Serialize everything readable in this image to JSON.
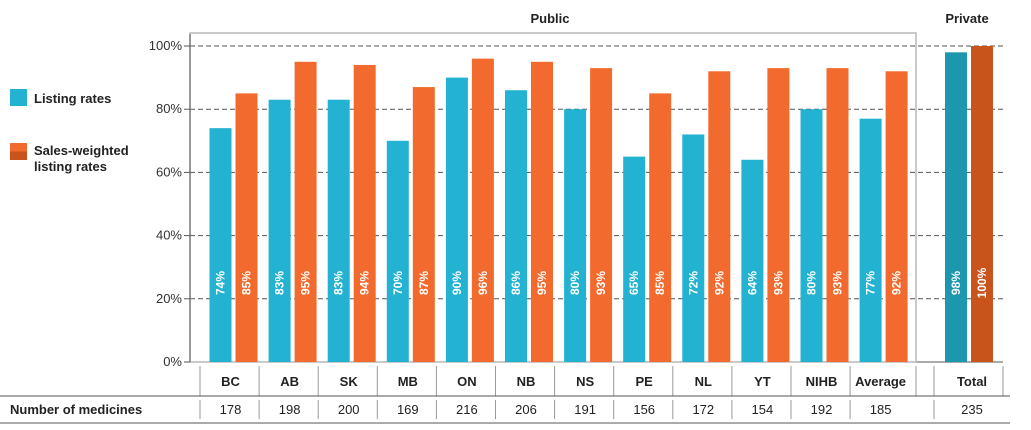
{
  "chart_data": {
    "type": "bar",
    "ylim": [
      0,
      100
    ],
    "yticks": [
      0,
      20,
      40,
      60,
      80,
      100
    ],
    "ytick_suffix": "%",
    "groups": [
      {
        "label": "Public",
        "categories": [
          "BC",
          "AB",
          "SK",
          "MB",
          "ON",
          "NB",
          "NS",
          "PE",
          "NL",
          "YT",
          "NIHB",
          "Average"
        ]
      },
      {
        "label": "Private",
        "categories": [
          "Total"
        ]
      }
    ],
    "categories": [
      "BC",
      "AB",
      "SK",
      "MB",
      "ON",
      "NB",
      "NS",
      "PE",
      "NL",
      "YT",
      "NIHB",
      "Average",
      "Total"
    ],
    "series": [
      {
        "name": "Listing rates",
        "values": [
          74,
          83,
          83,
          70,
          90,
          86,
          80,
          65,
          72,
          64,
          80,
          77,
          98
        ],
        "labels": [
          "74%",
          "83%",
          "83%",
          "70%",
          "90%",
          "86%",
          "80%",
          "65%",
          "72%",
          "64%",
          "80%",
          "77%",
          "98%"
        ]
      },
      {
        "name": "Sales-weighted listing rates",
        "name_lines": [
          "Sales-weighted",
          "listing rates"
        ],
        "values": [
          85,
          95,
          94,
          87,
          96,
          95,
          93,
          85,
          92,
          93,
          93,
          92,
          100
        ],
        "labels": [
          "85%",
          "95%",
          "94%",
          "87%",
          "96%",
          "95%",
          "93%",
          "85%",
          "92%",
          "93%",
          "93%",
          "92%",
          "100%"
        ]
      }
    ],
    "count_row": {
      "label": "Number of medicines",
      "values": [
        "178",
        "198",
        "200",
        "169",
        "216",
        "206",
        "191",
        "156",
        "172",
        "154",
        "192",
        "185",
        "235"
      ]
    },
    "colors": {
      "public_listing": "#23b2d1",
      "public_sales": "#f26a2d",
      "private_listing": "#1d97ad",
      "private_sales": "#c8541c"
    },
    "grid": "dashed",
    "legend_position": "left"
  }
}
